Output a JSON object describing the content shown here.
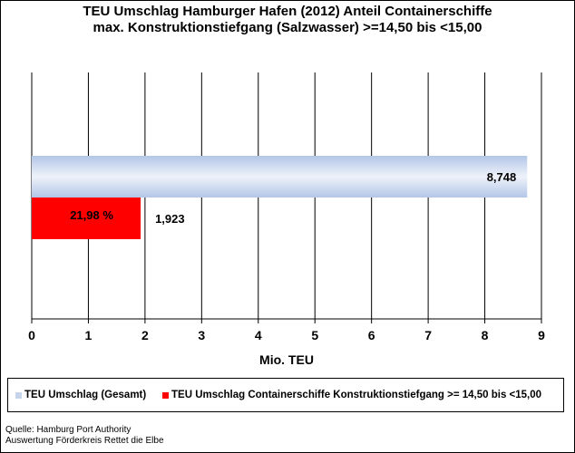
{
  "chart_data": {
    "type": "bar",
    "orientation": "horizontal",
    "title_line1": "TEU Umschlag Hamburger Hafen (2012) Anteil Containerschiffe",
    "title_line2": "max. Konstruktionstiefgang (Salzwasser) >=14,50  bis <15,00",
    "xlabel": "Mio. TEU",
    "xlim": [
      0,
      9
    ],
    "xticks": [
      "0",
      "1",
      "2",
      "3",
      "4",
      "5",
      "6",
      "7",
      "8",
      "9"
    ],
    "grid": true,
    "legend_position": "bottom",
    "series": [
      {
        "name": "TEU Umschlag (Gesamt)",
        "value": 8.748,
        "label": "8,748",
        "color": "#c6d4ec"
      },
      {
        "name": "TEU Umschlag Containerschiffe Konstruktionstiefgang >= 14,50 bis <15,00",
        "value": 1.923,
        "label": "1,923",
        "share_label": "21,98 %",
        "color": "#ff0000"
      }
    ]
  },
  "source": {
    "line1": "Quelle: Hamburg Port Authority",
    "line2": "Auswertung Förderkreis Rettet die Elbe"
  }
}
